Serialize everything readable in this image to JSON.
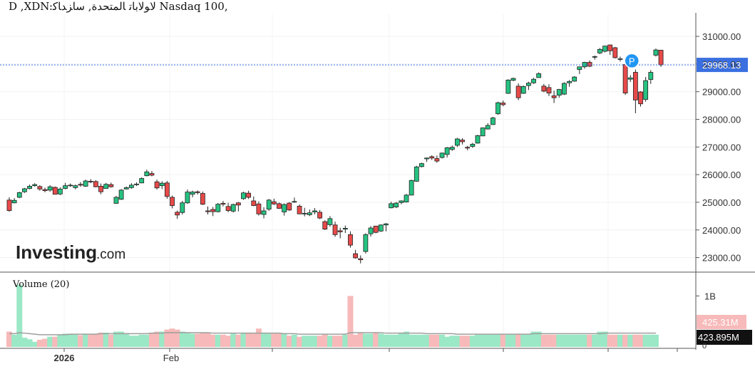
{
  "header": {
    "title": "D ,XDN:ﻻﻮﻟﺎﺑﺎﺗ ﺎﻟﻤﺘﺤﺪﺓ, ﺳﺎﺰﺪﺎﻛ Nasdaq 100,"
  },
  "logo": {
    "main": "Investing",
    "suffix": ".com"
  },
  "colors": {
    "up": "#26c281",
    "down": "#e84a4a",
    "vol_up": "#9be8c6",
    "vol_down": "#f7b9b9",
    "price_line": "#3a6fe0",
    "price_tag": "#3a6fe0",
    "ma_line": "#9e9e9e",
    "badge": "#2196f3"
  },
  "chart_data": {
    "type": "candlestick",
    "price_axis": {
      "ylim": [
        22500,
        31800
      ],
      "ticks": [
        "31000.00",
        "30000.00",
        "29000.00",
        "28000.00",
        "27000.00",
        "26000.00",
        "25000.00",
        "24000.00",
        "23000.00"
      ]
    },
    "volume_panel": {
      "label": "Volume (20)",
      "ylim": [
        0,
        1.3
      ],
      "unit": "B",
      "ticks": [
        "1B"
      ],
      "bottom_tick": "0"
    },
    "x_labels": [
      "2026",
      "Feb"
    ],
    "last_price": "29968.13",
    "volume_tags": {
      "upper": "425.31M",
      "lower": "423.895M"
    },
    "marker": {
      "label": "P",
      "index": 122
    },
    "candles": [
      [
        25080,
        25180,
        24660,
        24700
      ],
      [
        24980,
        25150,
        24960,
        25070
      ],
      [
        25180,
        25380,
        25150,
        25350
      ],
      [
        25380,
        25520,
        25340,
        25490
      ],
      [
        25500,
        25640,
        25470,
        25580
      ],
      [
        25600,
        25690,
        25560,
        25640
      ],
      [
        25570,
        25620,
        25420,
        25480
      ],
      [
        25460,
        25530,
        25360,
        25420
      ],
      [
        25440,
        25620,
        25380,
        25560
      ],
      [
        25540,
        25570,
        25280,
        25290
      ],
      [
        25300,
        25540,
        25260,
        25480
      ],
      [
        25500,
        25700,
        25470,
        25600
      ],
      [
        25610,
        25680,
        25560,
        25620
      ],
      [
        25530,
        25640,
        25470,
        25600
      ],
      [
        25650,
        25730,
        25560,
        25620
      ],
      [
        25580,
        25820,
        25560,
        25770
      ],
      [
        25760,
        25840,
        25690,
        25740
      ],
      [
        25750,
        25800,
        25540,
        25560
      ],
      [
        25580,
        25680,
        25290,
        25380
      ],
      [
        25500,
        25700,
        25490,
        25650
      ],
      [
        25640,
        25710,
        25530,
        25560
      ],
      [
        24960,
        25230,
        24950,
        25180
      ],
      [
        25110,
        25480,
        25080,
        25440
      ],
      [
        25480,
        25570,
        25470,
        25530
      ],
      [
        25530,
        25690,
        25490,
        25620
      ],
      [
        25660,
        25720,
        25590,
        25660
      ],
      [
        25700,
        25900,
        25690,
        25860
      ],
      [
        25960,
        26180,
        25940,
        26100
      ],
      [
        26040,
        26130,
        25940,
        25980
      ],
      [
        25740,
        25820,
        25460,
        25520
      ],
      [
        25600,
        25760,
        25480,
        25690
      ],
      [
        25700,
        25770,
        25130,
        25210
      ],
      [
        25180,
        25240,
        24780,
        24880
      ],
      [
        24640,
        24700,
        24400,
        24540
      ],
      [
        24630,
        25050,
        24560,
        24980
      ],
      [
        24980,
        25460,
        24940,
        25370
      ],
      [
        25290,
        25420,
        25180,
        25370
      ],
      [
        25380,
        25430,
        25280,
        25350
      ],
      [
        25320,
        25390,
        24900,
        24930
      ],
      [
        24690,
        24850,
        24560,
        24660
      ],
      [
        24740,
        24830,
        24500,
        24660
      ],
      [
        24660,
        24970,
        24630,
        24930
      ],
      [
        24960,
        25050,
        24850,
        24930
      ],
      [
        24850,
        24980,
        24640,
        24700
      ],
      [
        24680,
        24950,
        24630,
        24920
      ],
      [
        24980,
        25010,
        24670,
        24900
      ],
      [
        25130,
        25380,
        25090,
        25340
      ],
      [
        25330,
        25420,
        25120,
        25180
      ],
      [
        25050,
        25210,
        24860,
        24880
      ],
      [
        24940,
        25030,
        24520,
        24580
      ],
      [
        24560,
        24820,
        24420,
        24690
      ],
      [
        24750,
        25120,
        24690,
        25080
      ],
      [
        25020,
        25130,
        24900,
        24940
      ],
      [
        24950,
        24990,
        24760,
        24780
      ],
      [
        24650,
        24960,
        24520,
        24920
      ],
      [
        24970,
        25010,
        24690,
        24720
      ],
      [
        25020,
        25170,
        24980,
        25030
      ],
      [
        24860,
        24920,
        24570,
        24580
      ],
      [
        24590,
        24800,
        24490,
        24600
      ],
      [
        24550,
        24740,
        24500,
        24620
      ],
      [
        24650,
        24790,
        24560,
        24690
      ],
      [
        24640,
        24720,
        24390,
        24430
      ],
      [
        24300,
        24350,
        24000,
        24030
      ],
      [
        24190,
        24500,
        24120,
        24410
      ],
      [
        24180,
        24300,
        23750,
        23830
      ],
      [
        23970,
        24080,
        23700,
        23930
      ],
      [
        24030,
        24160,
        23890,
        24060
      ],
      [
        23830,
        23950,
        23360,
        23450
      ],
      [
        23140,
        23280,
        22960,
        22990
      ],
      [
        22960,
        23080,
        22790,
        22920
      ],
      [
        23220,
        23880,
        23150,
        23830
      ],
      [
        23860,
        24140,
        23760,
        24070
      ],
      [
        24140,
        24150,
        23880,
        23910
      ],
      [
        23960,
        24200,
        23930,
        24180
      ],
      [
        24180,
        24250,
        23950,
        24220
      ],
      [
        24800,
        25020,
        24780,
        24950
      ],
      [
        24830,
        25010,
        24790,
        24970
      ],
      [
        24990,
        25070,
        24930,
        25050
      ],
      [
        25010,
        25300,
        24990,
        25260
      ],
      [
        25260,
        25820,
        25250,
        25790
      ],
      [
        25760,
        26320,
        25740,
        26280
      ],
      [
        26290,
        26430,
        26260,
        26400
      ],
      [
        26570,
        26620,
        26460,
        26600
      ],
      [
        26650,
        26700,
        26530,
        26600
      ],
      [
        26580,
        26690,
        26430,
        26490
      ],
      [
        26620,
        26800,
        26580,
        26780
      ],
      [
        26730,
        27000,
        26620,
        26970
      ],
      [
        26910,
        27050,
        26860,
        26990
      ],
      [
        27060,
        27330,
        27000,
        27290
      ],
      [
        27250,
        27320,
        27090,
        27190
      ],
      [
        26990,
        27040,
        26880,
        26960
      ],
      [
        27020,
        27150,
        26970,
        27100
      ],
      [
        27140,
        27440,
        27120,
        27410
      ],
      [
        27400,
        27710,
        27390,
        27690
      ],
      [
        27650,
        27860,
        27630,
        27780
      ],
      [
        27810,
        28090,
        27800,
        28050
      ],
      [
        28200,
        28640,
        28160,
        28600
      ],
      [
        28590,
        28680,
        28470,
        28530
      ],
      [
        28940,
        29450,
        28920,
        29420
      ],
      [
        29410,
        29510,
        29380,
        29480
      ],
      [
        29200,
        29300,
        28690,
        28780
      ],
      [
        28940,
        29220,
        28920,
        29190
      ],
      [
        29220,
        29360,
        29060,
        29310
      ],
      [
        29320,
        29500,
        29280,
        29450
      ],
      [
        29510,
        29700,
        29500,
        29650
      ],
      [
        29200,
        29280,
        28980,
        29020
      ],
      [
        29150,
        29270,
        28840,
        28950
      ],
      [
        28850,
        29040,
        28590,
        28780
      ],
      [
        28870,
        29100,
        28780,
        29080
      ],
      [
        28910,
        29340,
        28880,
        29300
      ],
      [
        29320,
        29420,
        29180,
        29370
      ],
      [
        29380,
        29560,
        29360,
        29530
      ],
      [
        29800,
        29900,
        29640,
        29900
      ],
      [
        29900,
        30080,
        29830,
        30060
      ],
      [
        30060,
        30130,
        29890,
        29920
      ],
      [
        30250,
        30310,
        30160,
        30270
      ],
      [
        30400,
        30580,
        30360,
        30530
      ],
      [
        30460,
        30660,
        30420,
        30650
      ],
      [
        30690,
        30700,
        30330,
        30480
      ],
      [
        30590,
        30620,
        30200,
        30230
      ],
      [
        30170,
        30270,
        30090,
        30190
      ],
      [
        29980,
        30070,
        28880,
        28950
      ],
      [
        29450,
        29600,
        29350,
        29500
      ],
      [
        29700,
        29800,
        28220,
        28700
      ],
      [
        28990,
        29020,
        28460,
        28560
      ],
      [
        28720,
        29530,
        28640,
        29400
      ],
      [
        29440,
        29780,
        29280,
        29700
      ],
      [
        30320,
        30560,
        30270,
        30510
      ],
      [
        30500,
        30510,
        29900,
        29970
      ]
    ],
    "volumes": [
      0.3,
      0.24,
      1.22,
      0.18,
      0.15,
      0.1,
      0.14,
      0.16,
      0.2,
      0.2,
      0.24,
      0.26,
      0.26,
      0.24,
      0.23,
      0.26,
      0.24,
      0.26,
      0.28,
      0.28,
      0.24,
      0.3,
      0.3,
      0.26,
      0.22,
      0.22,
      0.24,
      0.24,
      0.28,
      0.3,
      0.3,
      0.34,
      0.36,
      0.34,
      0.3,
      0.28,
      0.26,
      0.26,
      0.28,
      0.28,
      0.24,
      0.24,
      0.24,
      0.22,
      0.26,
      0.24,
      0.28,
      0.28,
      0.26,
      0.36,
      0.28,
      0.26,
      0.26,
      0.26,
      0.26,
      0.22,
      0.24,
      0.2,
      0.22,
      0.22,
      0.22,
      0.22,
      0.24,
      0.22,
      0.22,
      0.22,
      0.24,
      1.0,
      0.24,
      0.28,
      0.26,
      0.26,
      0.28,
      0.26,
      0.24,
      0.24,
      0.24,
      0.28,
      0.3,
      0.24,
      0.24,
      0.24,
      0.24,
      0.24,
      0.24,
      0.24,
      0.2,
      0.22,
      0.22,
      0.22,
      0.22,
      0.22,
      0.24,
      0.24,
      0.24,
      0.24,
      0.24,
      0.24,
      0.24,
      0.24,
      0.24,
      0.24,
      0.24,
      0.3,
      0.3,
      0.24,
      0.24,
      0.24,
      0.24,
      0.24,
      0.24,
      0.24,
      0.24,
      0.24,
      0.24,
      0.24,
      0.3,
      0.3,
      0.24,
      0.24,
      0.24,
      0.24,
      0.24,
      0.24,
      0.24,
      0.24,
      0.24,
      0.24
    ],
    "volume_ma": [
      0.26,
      0.26,
      0.28,
      0.27,
      0.26,
      0.25,
      0.24,
      0.24,
      0.24,
      0.24,
      0.24,
      0.24,
      0.25,
      0.25,
      0.25,
      0.25,
      0.25,
      0.25,
      0.26,
      0.26,
      0.26,
      0.26,
      0.26,
      0.26,
      0.26,
      0.26,
      0.26,
      0.26,
      0.27,
      0.27,
      0.27,
      0.28,
      0.28,
      0.28,
      0.28,
      0.28,
      0.28,
      0.28,
      0.28,
      0.28,
      0.27,
      0.27,
      0.27,
      0.27,
      0.27,
      0.27,
      0.27,
      0.27,
      0.27,
      0.27,
      0.27,
      0.27,
      0.27,
      0.27,
      0.26,
      0.26,
      0.26,
      0.25,
      0.25,
      0.25,
      0.25,
      0.25,
      0.25,
      0.25,
      0.25,
      0.25,
      0.25,
      0.28,
      0.28,
      0.28,
      0.28,
      0.28,
      0.28,
      0.28,
      0.27,
      0.27,
      0.27,
      0.27,
      0.27,
      0.27,
      0.27,
      0.27,
      0.26,
      0.26,
      0.26,
      0.26,
      0.26,
      0.26,
      0.25,
      0.25,
      0.25,
      0.25,
      0.25,
      0.25,
      0.25,
      0.25,
      0.25,
      0.25,
      0.25,
      0.25,
      0.25,
      0.25,
      0.25,
      0.26,
      0.26,
      0.26,
      0.26,
      0.26,
      0.26,
      0.26,
      0.26,
      0.26,
      0.26,
      0.26,
      0.26,
      0.26,
      0.26,
      0.27,
      0.27,
      0.27,
      0.27,
      0.27,
      0.27,
      0.27,
      0.27,
      0.27,
      0.27,
      0.27
    ]
  }
}
